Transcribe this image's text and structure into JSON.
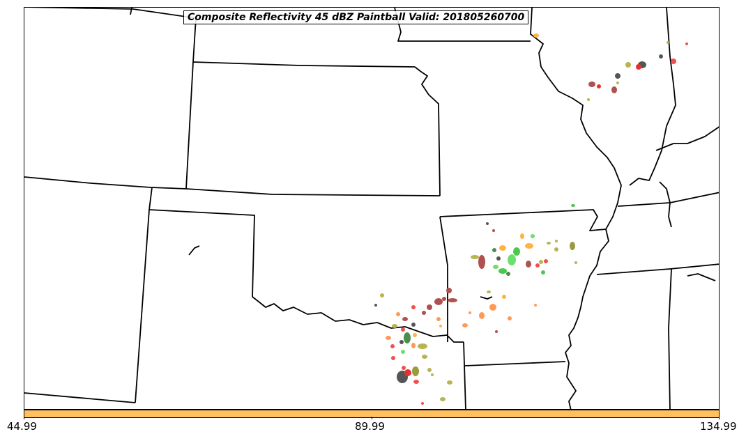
{
  "title": "Composite Reflectivity 45 dBZ Paintball Valid: 201805260700",
  "colorbar": {
    "color": "#FFC060",
    "ticks": [
      "44.99",
      "89.99",
      "134.99"
    ]
  },
  "colors": {
    "light_orange": "#FFB347",
    "salmon": "#FF9A55",
    "red": "#E83030",
    "light_red": "#F05050",
    "brown_red": "#B05050",
    "olive": "#B8B450",
    "dark_olive": "#9A9A40",
    "green": "#4CC84C",
    "light_green": "#6CE06C",
    "dark_gray": "#555555",
    "forest": "#4C8C4C"
  }
}
